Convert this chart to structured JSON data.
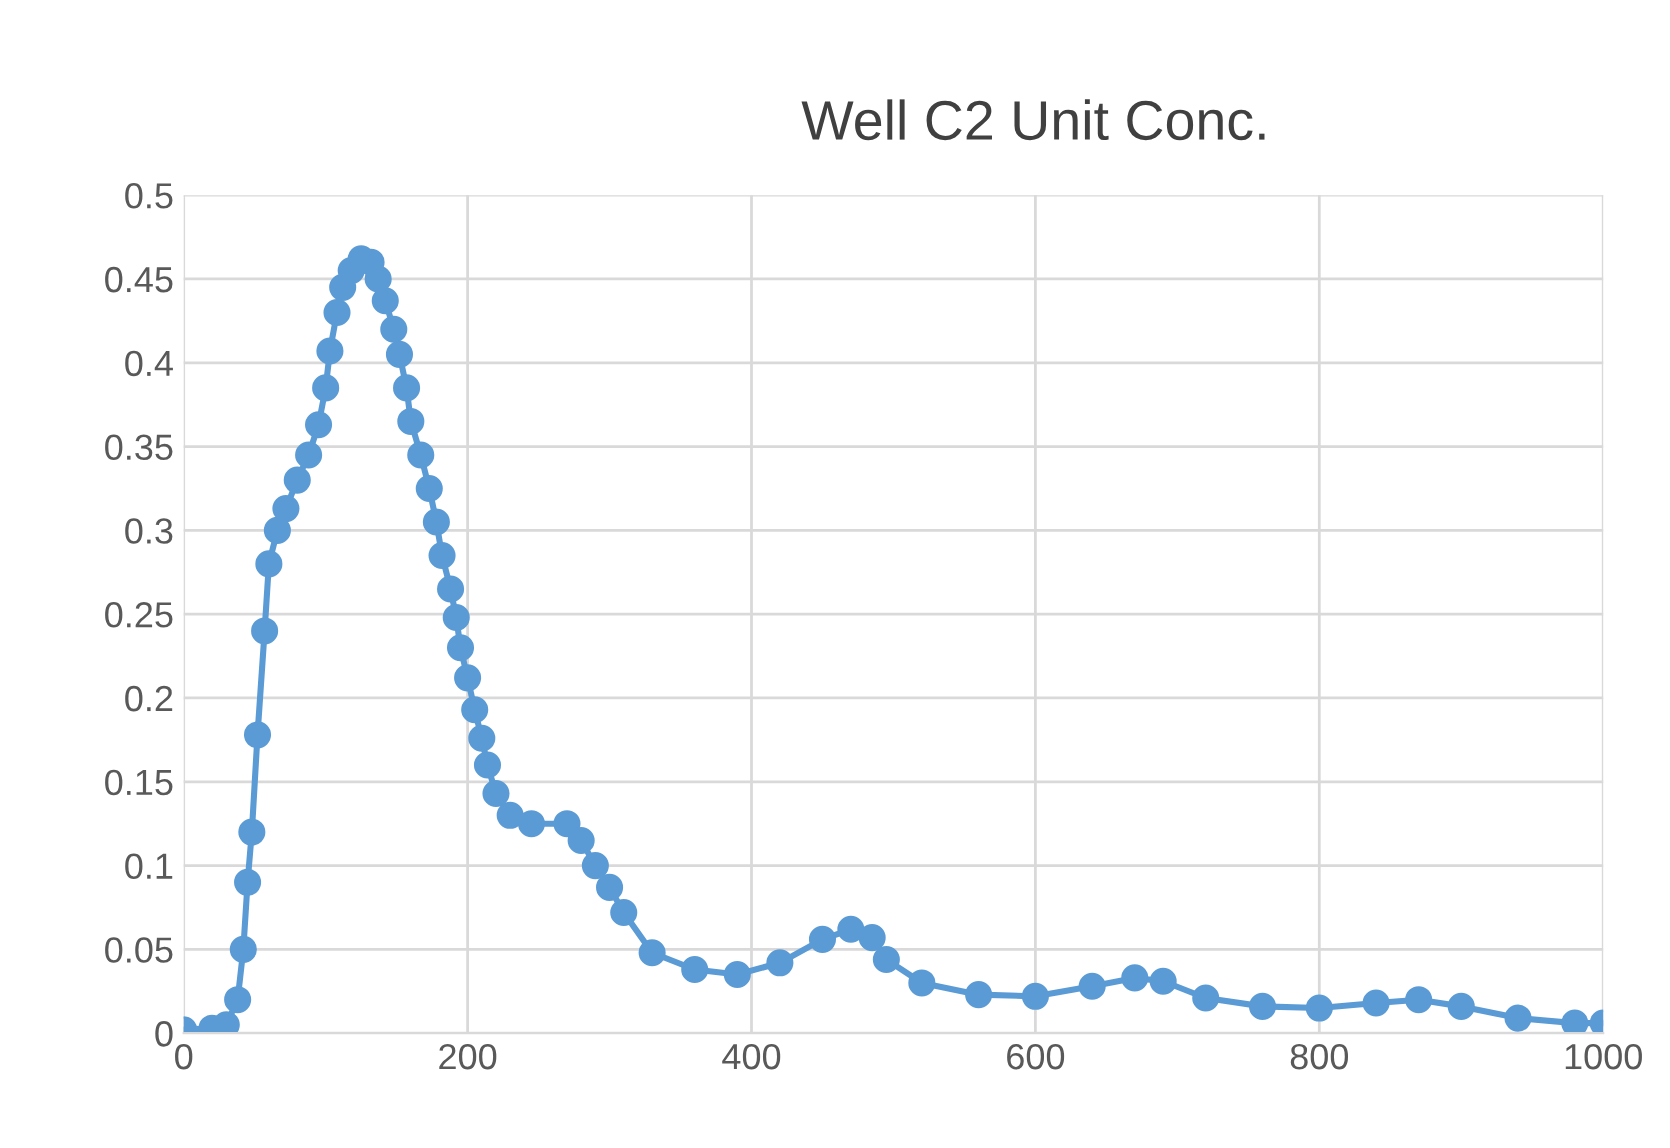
{
  "chart_data": {
    "type": "line",
    "title": "Well C2 Unit Conc.",
    "x": [
      0,
      20,
      30,
      38,
      42,
      45,
      48,
      52,
      57,
      60,
      66,
      72,
      80,
      88,
      95,
      100,
      103,
      108,
      112,
      118,
      125,
      132,
      137,
      142,
      148,
      152,
      157,
      160,
      167,
      173,
      178,
      182,
      188,
      192,
      195,
      200,
      205,
      210,
      214,
      220,
      230,
      245,
      270,
      280,
      290,
      300,
      310,
      330,
      360,
      390,
      420,
      450,
      470,
      485,
      495,
      520,
      560,
      600,
      640,
      670,
      690,
      720,
      760,
      800,
      840,
      870,
      900,
      940,
      980,
      1000
    ],
    "series": [
      {
        "color": "#5b9bd5",
        "values": [
          0.002,
          0.003,
          0.005,
          0.02,
          0.05,
          0.09,
          0.12,
          0.178,
          0.24,
          0.28,
          0.3,
          0.313,
          0.33,
          0.345,
          0.363,
          0.385,
          0.407,
          0.43,
          0.445,
          0.455,
          0.462,
          0.46,
          0.45,
          0.437,
          0.42,
          0.405,
          0.385,
          0.365,
          0.345,
          0.325,
          0.305,
          0.285,
          0.265,
          0.248,
          0.23,
          0.212,
          0.193,
          0.176,
          0.16,
          0.143,
          0.13,
          0.125,
          0.125,
          0.115,
          0.1,
          0.087,
          0.072,
          0.048,
          0.038,
          0.035,
          0.042,
          0.056,
          0.062,
          0.057,
          0.044,
          0.03,
          0.023,
          0.022,
          0.028,
          0.033,
          0.031,
          0.021,
          0.016,
          0.015,
          0.018,
          0.02,
          0.016,
          0.009,
          0.006,
          0.006
        ]
      }
    ],
    "xlim": [
      0,
      1000
    ],
    "xticks": [
      0,
      200,
      400,
      600,
      800,
      1000
    ],
    "ylim": [
      0,
      0.5
    ],
    "yticks": [
      0,
      0.05,
      0.1,
      0.15,
      0.2,
      0.25,
      0.3,
      0.35,
      0.4,
      0.45,
      0.5
    ],
    "grid": true,
    "marker": "circle",
    "line_style": "solid",
    "legend": false
  }
}
